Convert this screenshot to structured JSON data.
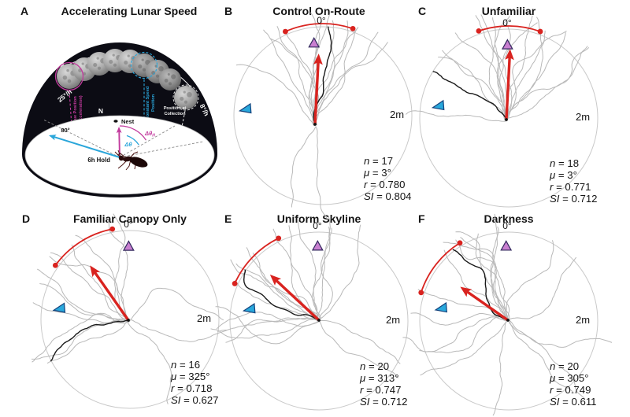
{
  "colors": {
    "red": "#d9231f",
    "magenta": "#c23a9d",
    "cyan": "#2aa6da",
    "pink_fill": "#c97fd0",
    "pink_stroke": "#33295e",
    "blue_fill": "#29a8dc",
    "blue_stroke": "#14427c",
    "gray_path": "#b9b9b9",
    "black_path": "#1a1a1a",
    "rim": "#c9c9c9",
    "dome": "#0c0c14",
    "text": "#141414"
  },
  "panels": {
    "A": {
      "letter": "A",
      "title": "Accelerating Lunar Speed",
      "labels": {
        "speed_fast": "25°/h",
        "speed_slow": "8°/h",
        "north": "N",
        "nest": "Nest",
        "angle80": "80°",
        "hold": "6h Hold",
        "true_pos_1": "True Position",
        "true_pos_2": "(Acceleration)",
        "const_1": "Constant Speed",
        "const_2": "Position",
        "collect_1": "Position at",
        "collect_2": "Collection",
        "delta_h": "Δθ",
        "delta_h_sub": "H",
        "delta": "Δθ"
      }
    },
    "B": {
      "letter": "B",
      "title": "Control On-Route"
    },
    "C": {
      "letter": "C",
      "title": "Unfamiliar"
    },
    "D": {
      "letter": "D",
      "title": "Familiar Canopy Only"
    },
    "E": {
      "letter": "E",
      "title": "Uniform Skyline"
    },
    "F": {
      "letter": "F",
      "title": "Darkness"
    }
  },
  "chart_data": [
    {
      "panel": "B",
      "type": "circular-trajectory-plot",
      "title": "Control On-Route",
      "zero_label": "0°",
      "scale_label": "2m",
      "stats": {
        "n": "17",
        "mu": "3°",
        "r": "0.780",
        "SI": "0.804"
      },
      "n": 17,
      "mean_deg": 3,
      "arc_deg": [
        -24,
        19
      ],
      "true_marker_deg": -7,
      "true_marker_rf": 0.82,
      "const_marker_deg": -85,
      "const_marker_rf": 0.86,
      "render": {
        "seed": 11,
        "spread_deg": 13,
        "outliers": [
          205,
          168
        ],
        "black_drift_deg": -6,
        "tail": [
          -10,
          11
        ],
        "arrow_len": 90,
        "wiggle": 0.5
      }
    },
    {
      "panel": "C",
      "type": "circular-trajectory-plot",
      "title": "Unfamiliar",
      "zero_label": "0°",
      "scale_label": "2m",
      "stats": {
        "n": "18",
        "mu": "3°",
        "r": "0.771",
        "SI": "0.712"
      },
      "n": 18,
      "mean_deg": 3,
      "arc_deg": [
        -19,
        20
      ],
      "true_marker_deg": -1,
      "true_marker_rf": 0.82,
      "const_marker_deg": -80,
      "const_marker_rf": 0.79,
      "render": {
        "seed": 23,
        "spread_deg": 30,
        "outliers": [
          268
        ],
        "black_drift_deg": -7,
        "tail": [
          -3,
          2
        ],
        "arrow_len": 90,
        "wiggle": 0.55
      }
    },
    {
      "panel": "D",
      "type": "circular-trajectory-plot",
      "title": "Familiar Canopy Only",
      "zero_label": "0°",
      "scale_label": "2m",
      "stats": {
        "n": "16",
        "mu": "325°",
        "r": "0.718",
        "SI": "0.627"
      },
      "n": 16,
      "mean_deg": -35,
      "arc_deg": [
        -54,
        -11
      ],
      "true_marker_deg": -1,
      "true_marker_rf": 0.82,
      "const_marker_deg": -81,
      "const_marker_rf": 0.79,
      "render": {
        "seed": 37,
        "spread_deg": 48,
        "outliers": [
          120,
          170
        ],
        "black_drift_deg": -78,
        "tail": [
          -2,
          1
        ],
        "arrow_len": 85,
        "wiggle": 0.6
      }
    },
    {
      "panel": "E",
      "type": "circular-trajectory-plot",
      "title": "Uniform Skyline",
      "zero_label": "0°",
      "scale_label": "2m",
      "stats": {
        "n": "20",
        "mu": "313°",
        "r": "0.747",
        "SI": "0.712"
      },
      "n": 20,
      "mean_deg": -47,
      "arc_deg": [
        -66,
        -26
      ],
      "true_marker_deg": -1,
      "true_marker_rf": 0.84,
      "const_marker_deg": -80,
      "const_marker_rf": 0.78,
      "render": {
        "seed": 51,
        "spread_deg": 50,
        "outliers": [
          155,
          95
        ],
        "black_drift_deg": -72,
        "tail": [
          0,
          -1
        ],
        "arrow_len": 85,
        "wiggle": 0.6
      }
    },
    {
      "panel": "F",
      "type": "circular-trajectory-plot",
      "title": "Darkness",
      "zero_label": "0°",
      "scale_label": "2m",
      "stats": {
        "n": "20",
        "mu": "305°",
        "r": "0.749",
        "SI": "0.611"
      },
      "n": 20,
      "mean_deg": -55,
      "arc_deg": [
        -72,
        -32
      ],
      "true_marker_deg": -2,
      "true_marker_rf": 0.84,
      "const_marker_deg": -79,
      "const_marker_rf": 0.76,
      "render": {
        "seed": 66,
        "spread_deg": 50,
        "outliers": [
          140,
          185
        ],
        "black_drift_deg": -80,
        "tail": [
          -1,
          -1
        ],
        "arrow_len": 74,
        "wiggle": 0.6
      }
    }
  ]
}
